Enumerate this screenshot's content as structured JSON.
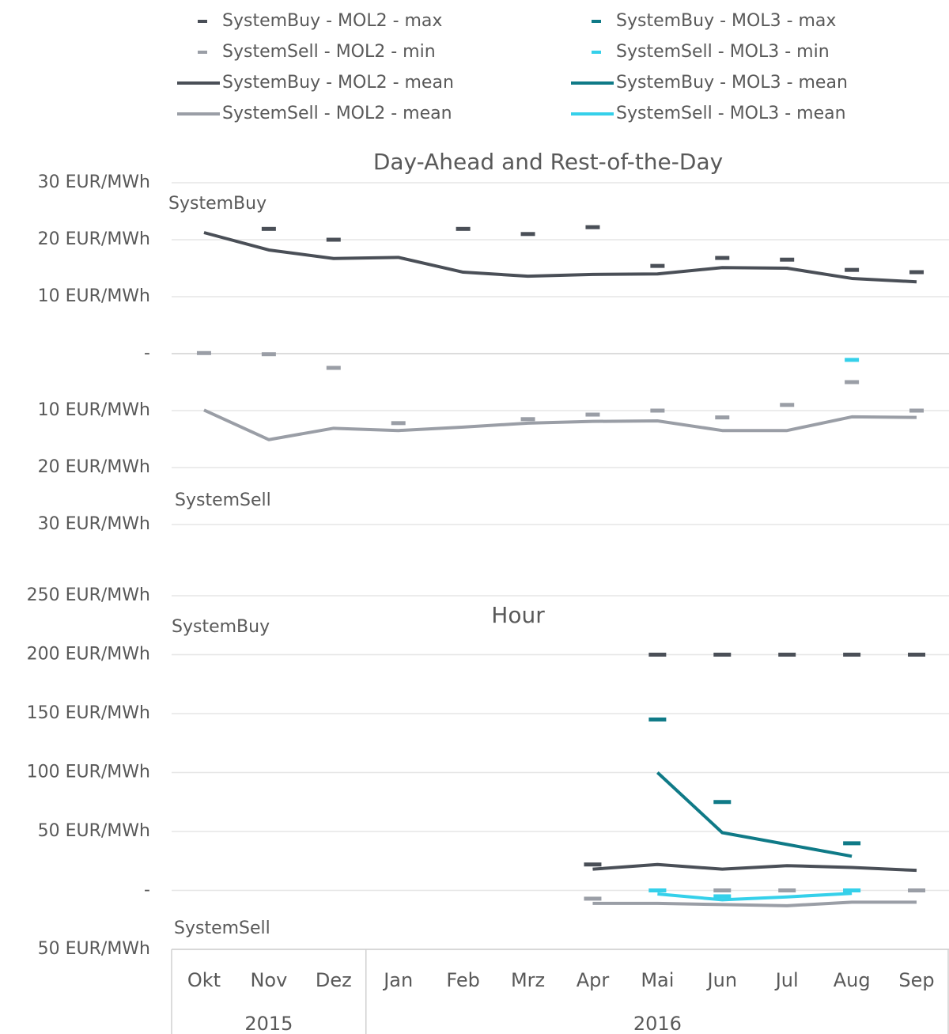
{
  "chart_data": [
    {
      "type": "line",
      "title": "Day-Ahead and Rest-of-the-Day",
      "annotations": [
        "SystemBuy",
        "SystemSell"
      ],
      "ylim": [
        -30,
        30
      ],
      "yticks": [
        {
          "value": 30,
          "label": "30 EUR/MWh"
        },
        {
          "value": 20,
          "label": "20 EUR/MWh"
        },
        {
          "value": 10,
          "label": "10 EUR/MWh"
        },
        {
          "value": 0,
          "label": "-"
        },
        {
          "value": -10,
          "label": "10 EUR/MWh"
        },
        {
          "value": -20,
          "label": "20 EUR/MWh"
        },
        {
          "value": -30,
          "label": "30 EUR/MWh"
        }
      ],
      "grid": true,
      "series": [
        {
          "name": "SystemBuy - MOL2 - max",
          "color": "#4a4f57",
          "mark": "dash",
          "values": [
            null,
            21.9,
            20.0,
            null,
            21.9,
            21.0,
            22.2,
            15.4,
            16.8,
            16.5,
            14.7,
            14.3
          ]
        },
        {
          "name": "SystemSell - MOL2 - min",
          "color": "#9a9ea6",
          "mark": "dash",
          "values": [
            0.1,
            -0.1,
            -2.5,
            -12.2,
            null,
            -11.5,
            -10.7,
            -10.0,
            -11.2,
            -9.0,
            -5.0,
            -10.0
          ]
        },
        {
          "name": "SystemBuy - MOL2 - mean",
          "color": "#4a4f57",
          "mark": "line",
          "values": [
            21.25,
            18.2,
            16.7,
            16.9,
            14.3,
            13.6,
            13.9,
            14.0,
            15.1,
            15.0,
            13.2,
            12.6
          ]
        },
        {
          "name": "SystemSell - MOL2 - mean",
          "color": "#9a9ea6",
          "mark": "line",
          "values": [
            -9.9,
            -15.1,
            -13.1,
            -13.5,
            -12.9,
            -12.2,
            -11.9,
            -11.8,
            -13.5,
            -13.5,
            -11.1,
            -11.2
          ]
        },
        {
          "name": "SystemBuy - MOL3 - max",
          "color": "#0f7a87",
          "mark": "dash",
          "values": [
            null,
            null,
            null,
            null,
            null,
            null,
            null,
            null,
            null,
            null,
            null,
            null
          ]
        },
        {
          "name": "SystemSell - MOL3 - min",
          "color": "#35d0ea",
          "mark": "dash",
          "values": [
            null,
            null,
            null,
            null,
            null,
            null,
            null,
            null,
            null,
            null,
            -1.1,
            null
          ]
        },
        {
          "name": "SystemBuy - MOL3 - mean",
          "color": "#0f7a87",
          "mark": "line",
          "values": [
            null,
            null,
            null,
            null,
            null,
            null,
            null,
            null,
            null,
            null,
            null,
            null
          ]
        },
        {
          "name": "SystemSell - MOL3 - mean",
          "color": "#35d0ea",
          "mark": "line",
          "values": [
            null,
            null,
            null,
            null,
            null,
            null,
            null,
            null,
            null,
            null,
            null,
            null
          ]
        }
      ]
    },
    {
      "type": "line",
      "title": "Hour",
      "annotations": [
        "SystemBuy",
        "SystemSell"
      ],
      "categories": [
        "Okt",
        "Nov",
        "Dez",
        "Jan",
        "Feb",
        "Mrz",
        "Apr",
        "Mai",
        "Jun",
        "Jul",
        "Aug",
        "Sep"
      ],
      "category_groups": [
        {
          "label": "2015",
          "span": 3
        },
        {
          "label": "2016",
          "span": 9
        }
      ],
      "ylim": [
        -50,
        250
      ],
      "yticks": [
        {
          "value": 250,
          "label": "250 EUR/MWh"
        },
        {
          "value": 200,
          "label": "200 EUR/MWh"
        },
        {
          "value": 150,
          "label": "150 EUR/MWh"
        },
        {
          "value": 100,
          "label": "100 EUR/MWh"
        },
        {
          "value": 50,
          "label": "50 EUR/MWh"
        },
        {
          "value": 0,
          "label": "-"
        },
        {
          "value": -50,
          "label": "50 EUR/MWh"
        }
      ],
      "grid": true,
      "series": [
        {
          "name": "SystemBuy - MOL2 - max",
          "color": "#4a4f57",
          "mark": "dash",
          "values": [
            null,
            null,
            null,
            null,
            null,
            null,
            22,
            200,
            200,
            200,
            200,
            200
          ]
        },
        {
          "name": "SystemSell - MOL2 - min",
          "color": "#9a9ea6",
          "mark": "dash",
          "values": [
            null,
            null,
            null,
            null,
            null,
            null,
            -7,
            0,
            0,
            0,
            0,
            0
          ]
        },
        {
          "name": "SystemBuy - MOL2 - mean",
          "color": "#4a4f57",
          "mark": "line",
          "values": [
            null,
            null,
            null,
            null,
            null,
            null,
            18,
            22,
            18,
            21,
            19.5,
            17
          ]
        },
        {
          "name": "SystemSell - MOL2 - mean",
          "color": "#9a9ea6",
          "mark": "line",
          "values": [
            null,
            null,
            null,
            null,
            null,
            null,
            -11,
            -11,
            -12,
            -13,
            -10,
            -10
          ]
        },
        {
          "name": "SystemBuy - MOL3 - max",
          "color": "#0f7a87",
          "mark": "dash",
          "values": [
            null,
            null,
            null,
            null,
            null,
            null,
            null,
            145,
            75,
            null,
            40,
            null
          ]
        },
        {
          "name": "SystemSell - MOL3 - min",
          "color": "#35d0ea",
          "mark": "dash",
          "values": [
            null,
            null,
            null,
            null,
            null,
            null,
            null,
            0,
            -5,
            null,
            0,
            null
          ]
        },
        {
          "name": "SystemBuy - MOL3 - mean",
          "color": "#0f7a87",
          "mark": "line",
          "values": [
            null,
            null,
            null,
            null,
            null,
            null,
            null,
            100,
            49,
            39,
            29,
            null
          ]
        },
        {
          "name": "SystemSell - MOL3 - mean",
          "color": "#35d0ea",
          "mark": "line",
          "values": [
            null,
            null,
            null,
            null,
            null,
            null,
            null,
            -3,
            -8,
            -5.5,
            -2.5,
            null
          ]
        }
      ]
    }
  ]
}
